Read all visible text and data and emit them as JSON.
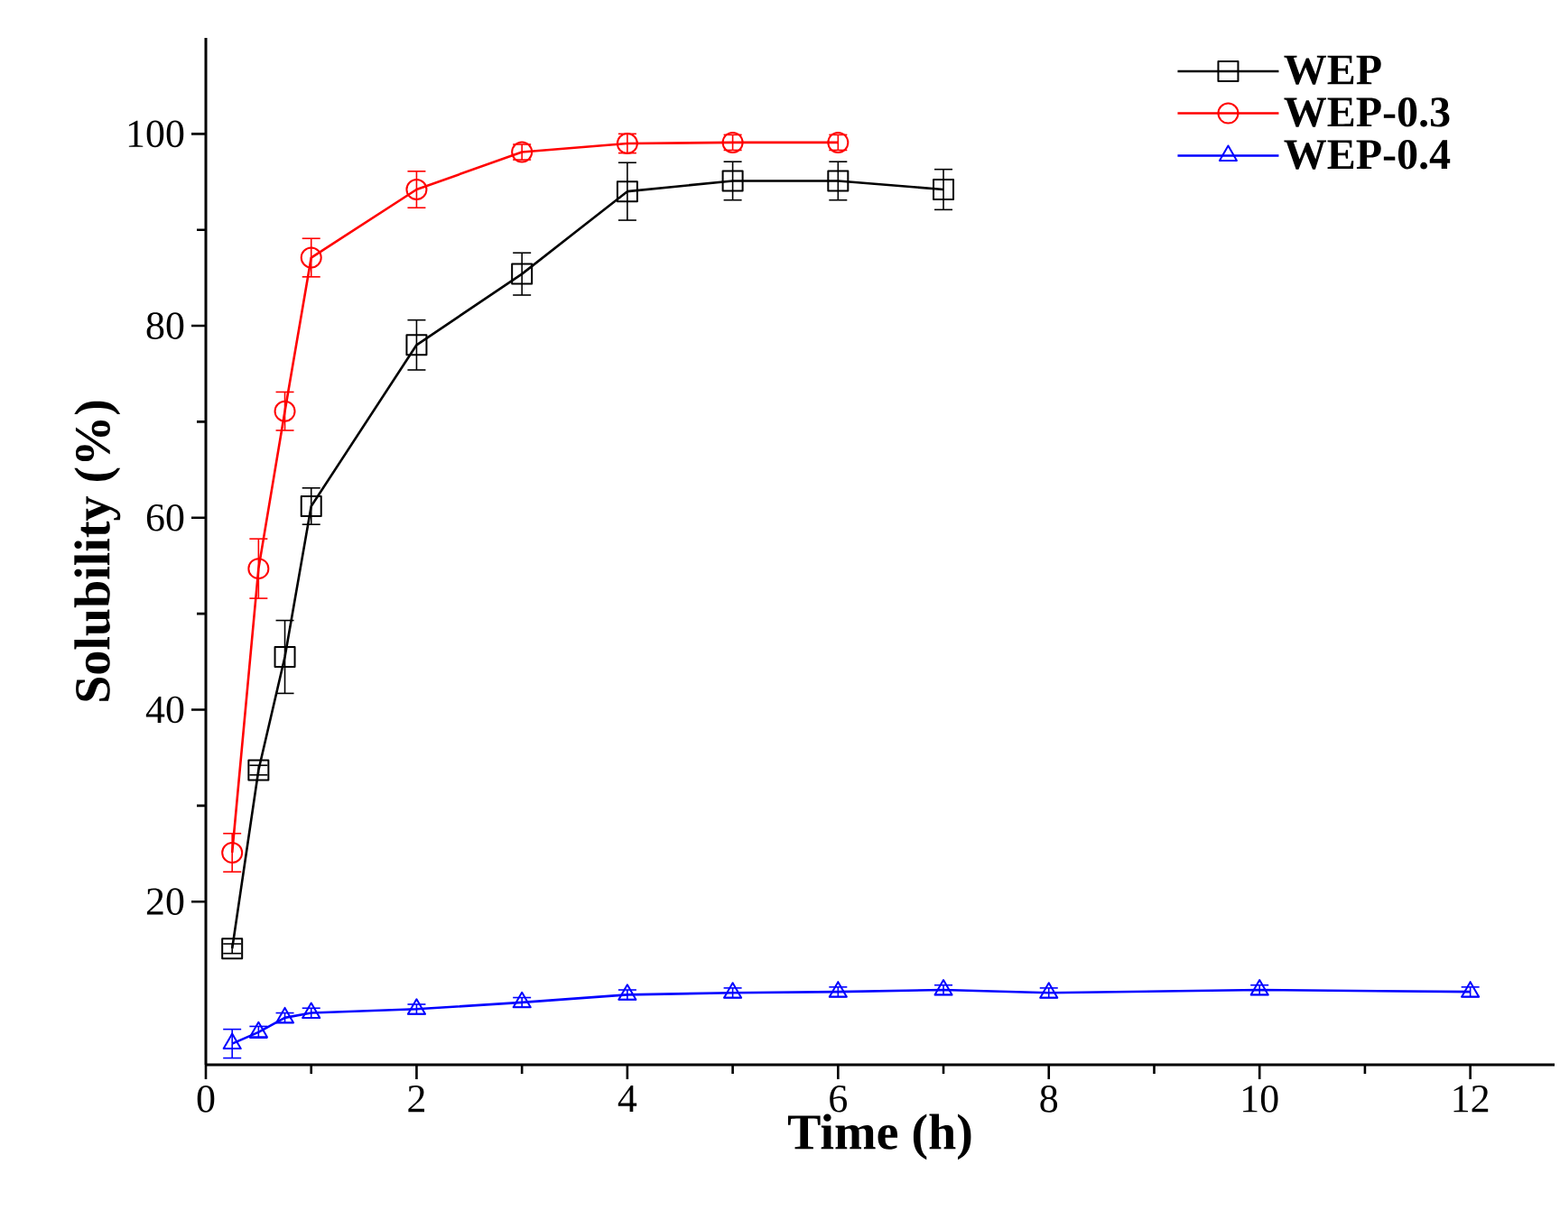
{
  "chart_data": {
    "type": "line",
    "xlabel": "Time (h)",
    "ylabel": "Solubility (%)",
    "xlim": [
      0,
      12.8
    ],
    "ylim": [
      3,
      110
    ],
    "xticks": [
      0,
      2,
      4,
      6,
      8,
      10,
      12
    ],
    "yticks": [
      20,
      40,
      60,
      80,
      100
    ],
    "legend": "top right",
    "line_style": "solid",
    "series": [
      {
        "name": "WEP",
        "color": "#000000",
        "marker": "square",
        "x": [
          0.25,
          0.5,
          0.75,
          1,
          2,
          3,
          4,
          5,
          6,
          7
        ],
        "values": [
          15.1,
          33.7,
          45.5,
          61.2,
          78.0,
          85.4,
          94.0,
          95.1,
          95.1,
          94.2
        ],
        "errors": [
          0.5,
          0.5,
          3.8,
          1.9,
          2.6,
          2.2,
          3.0,
          2.0,
          2.0,
          2.1
        ]
      },
      {
        "name": "WEP-0.3",
        "color": "#ff0000",
        "marker": "circle",
        "x": [
          0.25,
          0.5,
          0.75,
          1,
          2,
          3,
          4,
          5,
          6
        ],
        "values": [
          25.1,
          54.7,
          71.1,
          87.1,
          94.2,
          98.1,
          99.0,
          99.1,
          99.1
        ],
        "errors": [
          2.0,
          3.1,
          2.0,
          2.0,
          1.9,
          0.8,
          1.0,
          0.8,
          0.8
        ]
      },
      {
        "name": "WEP-0.4",
        "color": "#0000ff",
        "marker": "triangle",
        "x": [
          0.25,
          0.5,
          0.75,
          1,
          2,
          3,
          4,
          5,
          6,
          7,
          8,
          10,
          12
        ],
        "values": [
          5.2,
          6.4,
          7.9,
          8.4,
          8.8,
          9.5,
          10.3,
          10.5,
          10.6,
          10.8,
          10.5,
          10.8,
          10.6
        ],
        "errors": [
          1.5,
          0.6,
          0.5,
          0.5,
          0.5,
          0.5,
          0.5,
          0.5,
          0.5,
          0.5,
          0.5,
          0.5,
          0.5
        ]
      }
    ]
  }
}
